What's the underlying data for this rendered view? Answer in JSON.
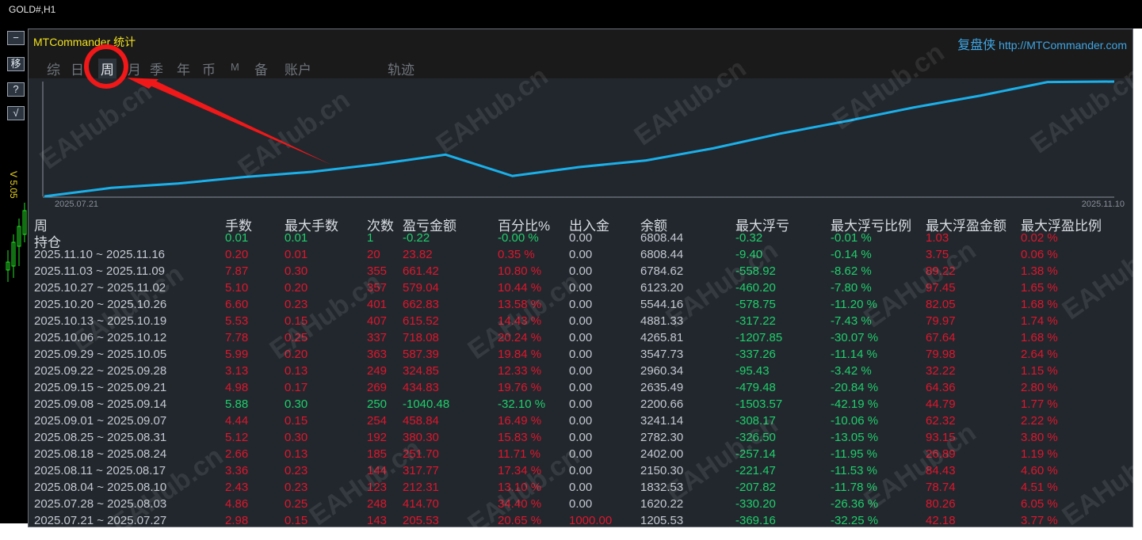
{
  "chart_window": {
    "symbol": "GOLD#,H1"
  },
  "side_buttons": [
    {
      "label": "−",
      "icon": "minimize-icon"
    },
    {
      "label": "移",
      "icon": "move-icon"
    },
    {
      "label": "?",
      "icon": "help-icon"
    },
    {
      "label": "√",
      "icon": "check-icon"
    }
  ],
  "version": "V 5.05",
  "header": {
    "title": "MTCommander 统计",
    "brand_cn": "复盘侠",
    "brand_url": "http://MTCommander.com"
  },
  "tabs": [
    {
      "label": "综"
    },
    {
      "label": "日"
    },
    {
      "label": "周",
      "active": true
    },
    {
      "label": "月"
    },
    {
      "label": "季"
    },
    {
      "label": "年"
    },
    {
      "label": "币"
    },
    {
      "label": "M"
    },
    {
      "label": "备"
    },
    {
      "label": "账户"
    },
    {
      "label": "轨迹"
    }
  ],
  "chart_data": {
    "type": "line",
    "x_start_label": "2025.07.21",
    "x_end_label": "2025.11.10",
    "line_color": "#1ab0ea",
    "x": [
      "2025.07.21",
      "2025.07.28",
      "2025.08.04",
      "2025.08.11",
      "2025.08.18",
      "2025.08.25",
      "2025.09.01",
      "2025.09.08",
      "2025.09.15",
      "2025.09.22",
      "2025.09.29",
      "2025.10.06",
      "2025.10.13",
      "2025.10.20",
      "2025.10.27",
      "2025.11.03",
      "2025.11.10"
    ],
    "values": [
      1205.53,
      1620.22,
      1832.53,
      2150.3,
      2402.0,
      2782.3,
      3241.14,
      2200.66,
      2635.49,
      2960.34,
      3547.73,
      4265.81,
      4881.33,
      5544.16,
      6123.2,
      6784.62,
      6808.44
    ]
  },
  "colors": {
    "profit": "#e0162b",
    "loss": "#1ecf6a",
    "neutral": "#c4c9d1",
    "title": "#f2e11a",
    "link": "#3fa6e6"
  },
  "table": {
    "headers": [
      "周",
      "手数",
      "最大手数",
      "次数",
      "盈亏金额",
      "百分比%",
      "出入金",
      "余额",
      "最大浮亏",
      "最大浮亏比例",
      "最大浮盈金额",
      "最大浮盈比例"
    ],
    "rows": [
      {
        "type": "loss",
        "cells": [
          "持仓",
          "0.01",
          "0.01",
          "1",
          "-0.22",
          "-0.00 %",
          "0.00",
          "6808.44",
          "-0.32",
          "-0.01 %",
          "1.03",
          "0.02 %"
        ]
      },
      {
        "type": "profit",
        "cells": [
          "2025.11.10 ~ 2025.11.16",
          "0.20",
          "0.01",
          "20",
          "23.82",
          "0.35 %",
          "0.00",
          "6808.44",
          "-9.40",
          "-0.14 %",
          "3.75",
          "0.06 %"
        ]
      },
      {
        "type": "profit",
        "cells": [
          "2025.11.03 ~ 2025.11.09",
          "7.87",
          "0.30",
          "355",
          "661.42",
          "10.80 %",
          "0.00",
          "6784.62",
          "-558.92",
          "-8.62 %",
          "89.22",
          "1.38 %"
        ]
      },
      {
        "type": "profit",
        "cells": [
          "2025.10.27 ~ 2025.11.02",
          "5.10",
          "0.20",
          "357",
          "579.04",
          "10.44 %",
          "0.00",
          "6123.20",
          "-460.20",
          "-7.80 %",
          "97.45",
          "1.65 %"
        ]
      },
      {
        "type": "profit",
        "cells": [
          "2025.10.20 ~ 2025.10.26",
          "6.60",
          "0.23",
          "401",
          "662.83",
          "13.58 %",
          "0.00",
          "5544.16",
          "-578.75",
          "-11.20 %",
          "82.05",
          "1.68 %"
        ]
      },
      {
        "type": "profit",
        "cells": [
          "2025.10.13 ~ 2025.10.19",
          "5.53",
          "0.15",
          "407",
          "615.52",
          "14.43 %",
          "0.00",
          "4881.33",
          "-317.22",
          "-7.43 %",
          "79.97",
          "1.74 %"
        ]
      },
      {
        "type": "profit",
        "cells": [
          "2025.10.06 ~ 2025.10.12",
          "7.78",
          "0.25",
          "337",
          "718.08",
          "20.24 %",
          "0.00",
          "4265.81",
          "-1207.85",
          "-30.07 %",
          "67.64",
          "1.68 %"
        ]
      },
      {
        "type": "profit",
        "cells": [
          "2025.09.29 ~ 2025.10.05",
          "5.99",
          "0.20",
          "363",
          "587.39",
          "19.84 %",
          "0.00",
          "3547.73",
          "-337.26",
          "-11.14 %",
          "79.98",
          "2.64 %"
        ]
      },
      {
        "type": "profit",
        "cells": [
          "2025.09.22 ~ 2025.09.28",
          "3.13",
          "0.13",
          "249",
          "324.85",
          "12.33 %",
          "0.00",
          "2960.34",
          "-95.43",
          "-3.42 %",
          "32.22",
          "1.15 %"
        ]
      },
      {
        "type": "profit",
        "cells": [
          "2025.09.15 ~ 2025.09.21",
          "4.98",
          "0.17",
          "269",
          "434.83",
          "19.76 %",
          "0.00",
          "2635.49",
          "-479.48",
          "-20.84 %",
          "64.36",
          "2.80 %"
        ]
      },
      {
        "type": "loss",
        "cells": [
          "2025.09.08 ~ 2025.09.14",
          "5.88",
          "0.30",
          "250",
          "-1040.48",
          "-32.10 %",
          "0.00",
          "2200.66",
          "-1503.57",
          "-42.19 %",
          "44.79",
          "1.77 %"
        ]
      },
      {
        "type": "profit",
        "cells": [
          "2025.09.01 ~ 2025.09.07",
          "4.44",
          "0.15",
          "254",
          "458.84",
          "16.49 %",
          "0.00",
          "3241.14",
          "-308.17",
          "-10.06 %",
          "62.32",
          "2.22 %"
        ]
      },
      {
        "type": "profit",
        "cells": [
          "2025.08.25 ~ 2025.08.31",
          "5.12",
          "0.30",
          "192",
          "380.30",
          "15.83 %",
          "0.00",
          "2782.30",
          "-326.50",
          "-13.05 %",
          "93.15",
          "3.80 %"
        ]
      },
      {
        "type": "profit",
        "cells": [
          "2025.08.18 ~ 2025.08.24",
          "2.66",
          "0.13",
          "185",
          "251.70",
          "11.71 %",
          "0.00",
          "2402.00",
          "-257.14",
          "-11.95 %",
          "26.89",
          "1.19 %"
        ]
      },
      {
        "type": "profit",
        "cells": [
          "2025.08.11 ~ 2025.08.17",
          "3.36",
          "0.23",
          "144",
          "317.77",
          "17.34 %",
          "0.00",
          "2150.30",
          "-221.47",
          "-11.53 %",
          "84.43",
          "4.60 %"
        ]
      },
      {
        "type": "profit",
        "cells": [
          "2025.08.04 ~ 2025.08.10",
          "2.43",
          "0.23",
          "123",
          "212.31",
          "13.10 %",
          "0.00",
          "1832.53",
          "-207.82",
          "-11.78 %",
          "78.74",
          "4.51 %"
        ]
      },
      {
        "type": "profit",
        "cells": [
          "2025.07.28 ~ 2025.08.03",
          "4.86",
          "0.25",
          "248",
          "414.70",
          "34.40 %",
          "0.00",
          "1620.22",
          "-330.20",
          "-26.36 %",
          "80.26",
          "6.05 %"
        ]
      },
      {
        "type": "deposit",
        "cells": [
          "2025.07.21 ~ 2025.07.27",
          "2.98",
          "0.15",
          "143",
          "205.53",
          "20.65 %",
          "1000.00",
          "1205.53",
          "-369.16",
          "-32.25 %",
          "42.18",
          "3.77 %"
        ]
      }
    ]
  },
  "watermark": "EAHub.cn"
}
